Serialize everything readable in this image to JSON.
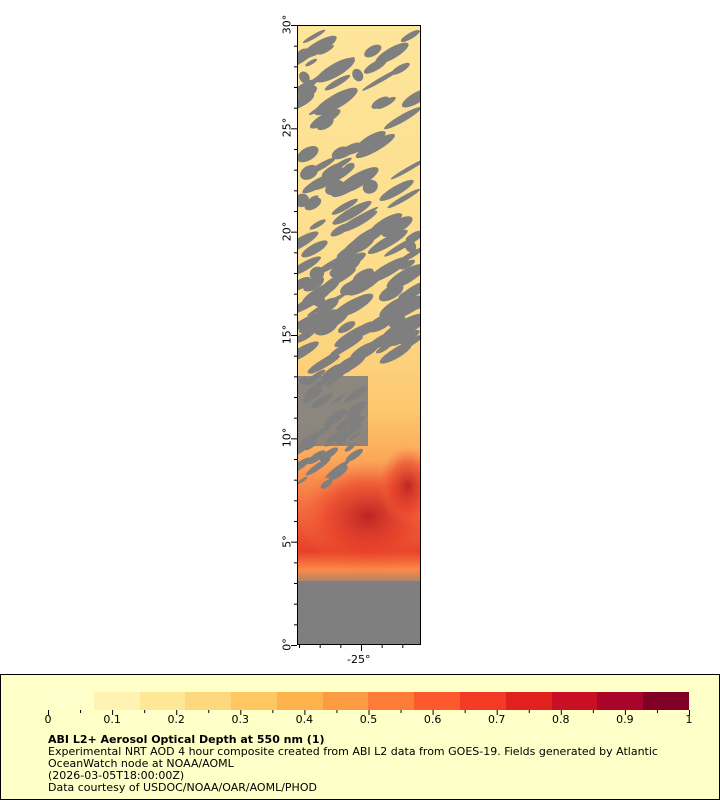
{
  "map": {
    "y_axis_labels": [
      "30°",
      "25°",
      "20°",
      "15°",
      "10°",
      "5°",
      "0°"
    ],
    "x_axis_labels": [
      "-25°"
    ],
    "missing_data_color": "#7f7f7f",
    "land_color": "#7f7f7f"
  },
  "legend": {
    "colorbar_labels": [
      "0",
      "0.1",
      "0.2",
      "0.3",
      "0.4",
      "0.5",
      "0.6",
      "0.7",
      "0.8",
      "0.9",
      "1"
    ],
    "colorbar_colors": [
      "#ffffcc",
      "#fff3b3",
      "#ffe798",
      "#fed87e",
      "#fec761",
      "#feb24c",
      "#fd9b43",
      "#fd7d38",
      "#fc5a2d",
      "#f23a24",
      "#e1211e",
      "#c90f24",
      "#a9052a",
      "#800026"
    ],
    "title": "ABI L2+ Aerosol Optical Depth at 550 nm (1)",
    "line1": "Experimental NRT AOD 4 hour composite created from ABI L2 data from GOES-19. Fields generated by Atlantic",
    "line2": "OceanWatch node at NOAA/AOML",
    "line3": "(2026-03-05T18:00:00Z)",
    "line4": "Data courtesy of USDOC/NOAA/OAR/AOML/PHOD"
  }
}
